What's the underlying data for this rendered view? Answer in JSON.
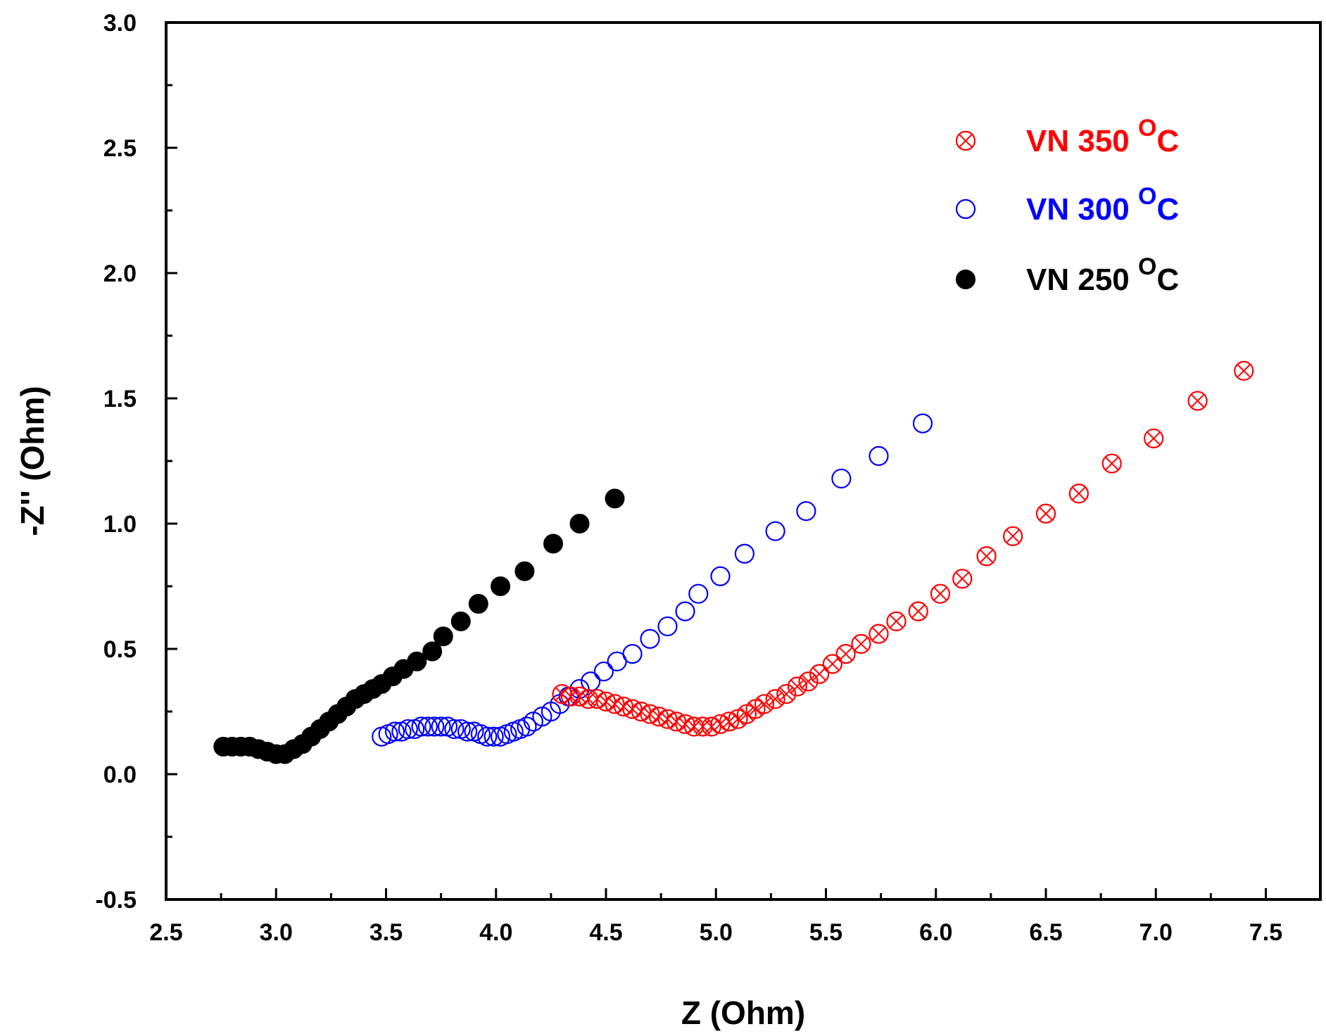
{
  "chart_data": {
    "type": "scatter",
    "title": "",
    "xlabel": "Z (Ohm)",
    "ylabel": "-Z'' (Ohm)",
    "xlim": [
      2.5,
      7.6
    ],
    "ylim": [
      -0.5,
      3.0
    ],
    "xticks": [
      "2.5",
      "3.0",
      "3.5",
      "4.0",
      "4.5",
      "5.0",
      "5.5",
      "6.0",
      "6.5",
      "7.0",
      "7.5"
    ],
    "yticks": [
      "-0.5",
      "0.0",
      "0.5",
      "1.0",
      "1.5",
      "2.0",
      "2.5",
      "3.0"
    ],
    "grid": false,
    "legend_position": "top-right",
    "series": [
      {
        "name": "VN 350",
        "unit": "C",
        "superscript": "O",
        "color": "#ff0000",
        "marker": "circle-x-open",
        "x": [
          4.3,
          4.34,
          4.38,
          4.42,
          4.46,
          4.5,
          4.54,
          4.58,
          4.62,
          4.66,
          4.7,
          4.74,
          4.78,
          4.82,
          4.86,
          4.9,
          4.94,
          4.98,
          5.02,
          5.06,
          5.1,
          5.14,
          5.18,
          5.22,
          5.27,
          5.32,
          5.37,
          5.42,
          5.47,
          5.53,
          5.59,
          5.66,
          5.74,
          5.82,
          5.92,
          6.02,
          6.12,
          6.23,
          6.35,
          6.5,
          6.65,
          6.8,
          6.99,
          7.19,
          7.4
        ],
        "y": [
          0.32,
          0.31,
          0.31,
          0.3,
          0.3,
          0.29,
          0.28,
          0.27,
          0.26,
          0.25,
          0.24,
          0.23,
          0.22,
          0.21,
          0.2,
          0.19,
          0.19,
          0.19,
          0.2,
          0.21,
          0.22,
          0.24,
          0.26,
          0.28,
          0.3,
          0.32,
          0.35,
          0.37,
          0.4,
          0.44,
          0.48,
          0.52,
          0.56,
          0.61,
          0.65,
          0.72,
          0.78,
          0.87,
          0.95,
          1.04,
          1.12,
          1.24,
          1.34,
          1.49,
          1.61
        ]
      },
      {
        "name": "VN 300",
        "unit": "C",
        "superscript": "O",
        "color": "#0000ff",
        "marker": "circle-open",
        "x": [
          3.48,
          3.51,
          3.54,
          3.57,
          3.6,
          3.63,
          3.66,
          3.69,
          3.72,
          3.75,
          3.78,
          3.81,
          3.84,
          3.87,
          3.9,
          3.93,
          3.96,
          3.99,
          4.02,
          4.05,
          4.08,
          4.11,
          4.14,
          4.17,
          4.21,
          4.25,
          4.29,
          4.33,
          4.38,
          4.43,
          4.49,
          4.55,
          4.62,
          4.7,
          4.78,
          4.86,
          4.92,
          5.02,
          5.13,
          5.27,
          5.41,
          5.57,
          5.74,
          5.94
        ],
        "y": [
          0.15,
          0.16,
          0.17,
          0.17,
          0.18,
          0.18,
          0.19,
          0.19,
          0.19,
          0.19,
          0.19,
          0.18,
          0.18,
          0.17,
          0.17,
          0.16,
          0.15,
          0.15,
          0.15,
          0.16,
          0.17,
          0.18,
          0.19,
          0.21,
          0.23,
          0.25,
          0.28,
          0.31,
          0.34,
          0.37,
          0.41,
          0.45,
          0.48,
          0.54,
          0.59,
          0.65,
          0.72,
          0.79,
          0.88,
          0.97,
          1.05,
          1.18,
          1.27,
          1.4
        ]
      },
      {
        "name": "VN 250",
        "unit": "C",
        "superscript": "O",
        "color": "#000000",
        "marker": "circle-filled",
        "x": [
          2.76,
          2.8,
          2.84,
          2.88,
          2.92,
          2.96,
          3.0,
          3.04,
          3.08,
          3.12,
          3.16,
          3.2,
          3.24,
          3.28,
          3.32,
          3.36,
          3.4,
          3.44,
          3.48,
          3.53,
          3.58,
          3.64,
          3.71,
          3.76,
          3.84,
          3.92,
          4.02,
          4.13,
          4.26,
          4.38,
          4.54
        ],
        "y": [
          0.11,
          0.11,
          0.11,
          0.11,
          0.1,
          0.09,
          0.08,
          0.08,
          0.1,
          0.12,
          0.15,
          0.18,
          0.21,
          0.24,
          0.27,
          0.3,
          0.32,
          0.34,
          0.36,
          0.39,
          0.42,
          0.45,
          0.49,
          0.55,
          0.61,
          0.68,
          0.75,
          0.81,
          0.92,
          1.0,
          1.1
        ]
      }
    ]
  }
}
